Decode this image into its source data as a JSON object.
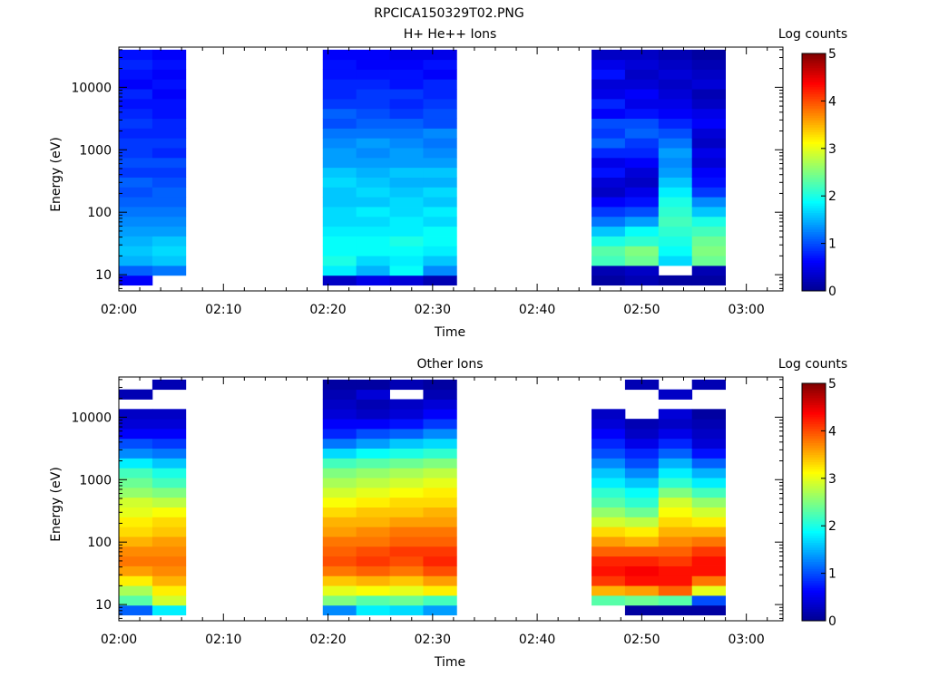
{
  "figure_title": "RPCICA150329T02.PNG",
  "colormap": [
    "#00008f",
    "#0000ff",
    "#0080ff",
    "#00ffff",
    "#80ff80",
    "#ffff00",
    "#ff8000",
    "#ff0000",
    "#800000"
  ],
  "chart_data": [
    {
      "type": "heatmap",
      "title": "H+ He++ Ions",
      "xlabel": "Time",
      "ylabel": "Energy (eV)",
      "y_scale": "log",
      "xlim_minutes": [
        0,
        63.5
      ],
      "ylim": [
        5.5,
        44000
      ],
      "x_ticks": [
        {
          "label": "02:00",
          "minutes": 0
        },
        {
          "label": "02:10",
          "minutes": 10
        },
        {
          "label": "02:20",
          "minutes": 20
        },
        {
          "label": "02:30",
          "minutes": 30
        },
        {
          "label": "02:40",
          "minutes": 40
        },
        {
          "label": "02:50",
          "minutes": 50
        },
        {
          "label": "03:00",
          "minutes": 60
        }
      ],
      "y_ticks": [
        {
          "label": "10",
          "value": 10
        },
        {
          "label": "100",
          "value": 100
        },
        {
          "label": "1000",
          "value": 1000
        },
        {
          "label": "10000",
          "value": 10000
        }
      ],
      "colorbar": {
        "label": "Log counts",
        "range": [
          0,
          5
        ],
        "ticks": [
          "0",
          "1",
          "2",
          "3",
          "4",
          "5"
        ]
      },
      "energy_bins_low_to_high": 24,
      "time_blocks": [
        {
          "start": 0.0,
          "end": 3.2,
          "log_counts_low_to_high": [
            0.6,
            1.1,
            1.5,
            1.6,
            1.5,
            1.4,
            1.3,
            1.2,
            1.1,
            1.0,
            1.1,
            0.9,
            1.0,
            0.9,
            0.9,
            0.8,
            0.9,
            0.8,
            0.7,
            0.8,
            0.6,
            0.7,
            0.8,
            0.7
          ]
        },
        {
          "start": 3.2,
          "end": 6.4,
          "log_counts_low_to_high": [
            null,
            1.2,
            1.6,
            1.7,
            1.6,
            1.4,
            1.3,
            1.2,
            1.1,
            1.1,
            1.0,
            0.9,
            1.0,
            0.8,
            0.9,
            0.8,
            0.8,
            0.7,
            0.7,
            0.6,
            0.7,
            0.6,
            0.7,
            0.6
          ]
        },
        {
          "start": 19.5,
          "end": 22.7,
          "log_counts_low_to_high": [
            0.3,
            1.8,
            2.0,
            1.9,
            1.9,
            1.8,
            1.7,
            1.7,
            1.6,
            1.6,
            1.7,
            1.6,
            1.4,
            1.4,
            1.3,
            1.2,
            1.0,
            1.1,
            0.9,
            0.8,
            0.8,
            0.7,
            0.7,
            0.6
          ]
        },
        {
          "start": 22.7,
          "end": 25.9,
          "log_counts_low_to_high": [
            0.5,
            1.5,
            1.7,
            1.9,
            1.9,
            1.8,
            1.7,
            1.8,
            1.6,
            1.7,
            1.6,
            1.5,
            1.4,
            1.3,
            1.4,
            1.2,
            1.1,
            1.0,
            0.9,
            0.9,
            0.8,
            0.7,
            0.6,
            0.6
          ]
        },
        {
          "start": 25.9,
          "end": 29.1,
          "log_counts_low_to_high": [
            0.4,
            1.9,
            1.8,
            1.9,
            2.0,
            1.8,
            1.8,
            1.7,
            1.7,
            1.6,
            1.5,
            1.6,
            1.4,
            1.4,
            1.3,
            1.2,
            1.1,
            0.9,
            0.8,
            0.9,
            0.7,
            0.7,
            0.6,
            0.5
          ]
        },
        {
          "start": 29.1,
          "end": 32.3,
          "log_counts_low_to_high": [
            0.2,
            1.3,
            1.6,
            1.8,
            1.9,
            1.9,
            1.7,
            1.8,
            1.6,
            1.7,
            1.5,
            1.6,
            1.4,
            1.3,
            1.2,
            1.3,
            1.0,
            1.0,
            0.9,
            0.8,
            0.8,
            0.6,
            0.7,
            0.5
          ]
        },
        {
          "start": 45.2,
          "end": 48.4,
          "log_counts_low_to_high": [
            0.1,
            0.2,
            2.2,
            2.3,
            2.0,
            1.6,
            1.2,
            0.9,
            0.6,
            0.3,
            0.4,
            0.7,
            0.5,
            0.8,
            1.1,
            0.9,
            1.0,
            0.6,
            0.8,
            0.5,
            0.4,
            0.7,
            0.5,
            0.3
          ]
        },
        {
          "start": 48.4,
          "end": 51.6,
          "log_counts_low_to_high": [
            0.2,
            0.3,
            2.4,
            2.5,
            2.1,
            1.9,
            1.4,
            1.0,
            0.7,
            0.5,
            0.3,
            0.4,
            0.6,
            0.8,
            0.9,
            1.1,
            1.0,
            0.7,
            0.5,
            0.6,
            0.4,
            0.3,
            0.4,
            0.3
          ]
        },
        {
          "start": 51.6,
          "end": 54.8,
          "log_counts_low_to_high": [
            0.1,
            null,
            1.7,
            1.9,
            2.0,
            2.1,
            2.2,
            2.1,
            2.0,
            1.8,
            1.6,
            1.4,
            1.3,
            1.4,
            1.2,
            1.0,
            0.8,
            0.6,
            0.5,
            0.4,
            0.3,
            0.4,
            0.3,
            0.2
          ]
        },
        {
          "start": 54.8,
          "end": 58.0,
          "log_counts_low_to_high": [
            0.1,
            0.2,
            2.4,
            2.5,
            2.4,
            2.2,
            2.0,
            1.6,
            1.3,
            0.9,
            0.7,
            0.6,
            0.4,
            0.5,
            0.3,
            0.4,
            0.6,
            0.5,
            0.3,
            0.2,
            0.4,
            0.3,
            0.2,
            0.1
          ]
        }
      ]
    },
    {
      "type": "heatmap",
      "title": "Other Ions",
      "xlabel": "Time",
      "ylabel": "Energy (eV)",
      "y_scale": "log",
      "xlim_minutes": [
        0,
        63.5
      ],
      "ylim": [
        5.5,
        44000
      ],
      "x_ticks": [
        {
          "label": "02:00",
          "minutes": 0
        },
        {
          "label": "02:10",
          "minutes": 10
        },
        {
          "label": "02:20",
          "minutes": 20
        },
        {
          "label": "02:30",
          "minutes": 30
        },
        {
          "label": "02:40",
          "minutes": 40
        },
        {
          "label": "02:50",
          "minutes": 50
        },
        {
          "label": "03:00",
          "minutes": 60
        }
      ],
      "y_ticks": [
        {
          "label": "10",
          "value": 10
        },
        {
          "label": "100",
          "value": 100
        },
        {
          "label": "1000",
          "value": 1000
        },
        {
          "label": "10000",
          "value": 10000
        }
      ],
      "colorbar": {
        "label": "Log counts",
        "range": [
          0,
          5
        ],
        "ticks": [
          "0",
          "1",
          "2",
          "3",
          "4",
          "5"
        ]
      },
      "energy_bins_low_to_high": 24,
      "time_blocks": [
        {
          "start": 0.0,
          "end": 3.2,
          "log_counts_low_to_high": [
            1.1,
            2.3,
            2.7,
            3.2,
            3.6,
            3.8,
            3.7,
            3.5,
            3.3,
            3.2,
            3.0,
            2.9,
            2.6,
            2.4,
            2.2,
            1.8,
            1.3,
            1.0,
            0.6,
            0.4,
            0.3,
            null,
            0.2,
            null
          ]
        },
        {
          "start": 3.2,
          "end": 6.4,
          "log_counts_low_to_high": [
            1.8,
            2.9,
            3.2,
            3.5,
            3.7,
            3.8,
            3.7,
            3.6,
            3.4,
            3.3,
            3.1,
            2.8,
            2.5,
            2.2,
            2.0,
            1.6,
            1.2,
            0.9,
            0.6,
            0.4,
            0.3,
            null,
            null,
            0.2
          ]
        },
        {
          "start": 19.5,
          "end": 22.7,
          "log_counts_low_to_high": [
            1.3,
            2.5,
            3.0,
            3.4,
            3.8,
            4.0,
            3.9,
            3.8,
            3.6,
            3.5,
            3.3,
            3.1,
            2.9,
            2.7,
            2.5,
            2.2,
            1.7,
            1.2,
            0.8,
            0.6,
            0.4,
            0.3,
            0.2,
            0.1
          ]
        },
        {
          "start": 22.7,
          "end": 25.9,
          "log_counts_low_to_high": [
            1.8,
            2.3,
            3.1,
            3.5,
            3.9,
            4.1,
            4.0,
            3.8,
            3.7,
            3.5,
            3.4,
            3.2,
            3.0,
            2.8,
            2.6,
            2.3,
            1.9,
            1.4,
            1.0,
            0.6,
            0.3,
            0.2,
            0.4,
            0.1
          ]
        },
        {
          "start": 25.9,
          "end": 29.1,
          "log_counts_low_to_high": [
            1.7,
            2.4,
            3.0,
            3.4,
            3.8,
            4.0,
            4.1,
            3.9,
            3.8,
            3.6,
            3.4,
            3.3,
            3.1,
            2.9,
            2.7,
            2.4,
            2.0,
            1.6,
            1.1,
            0.7,
            0.4,
            0.3,
            null,
            0.2
          ]
        },
        {
          "start": 29.1,
          "end": 32.3,
          "log_counts_low_to_high": [
            1.4,
            2.2,
            3.2,
            3.6,
            4.0,
            4.2,
            4.1,
            3.9,
            3.8,
            3.6,
            3.5,
            3.3,
            3.2,
            3.0,
            2.8,
            2.5,
            2.1,
            1.7,
            1.3,
            0.9,
            0.6,
            0.4,
            0.2,
            0.1
          ]
        },
        {
          "start": 45.2,
          "end": 48.4,
          "log_counts_low_to_high": [
            null,
            2.3,
            3.5,
            4.1,
            4.3,
            4.2,
            3.9,
            3.6,
            3.3,
            2.9,
            2.6,
            2.3,
            2.1,
            1.8,
            1.6,
            1.3,
            1.0,
            0.8,
            0.6,
            0.4,
            0.3,
            null,
            null,
            null
          ]
        },
        {
          "start": 48.4,
          "end": 51.6,
          "log_counts_low_to_high": [
            0.1,
            2.4,
            3.6,
            4.3,
            4.4,
            4.2,
            3.9,
            3.5,
            3.2,
            2.8,
            2.4,
            2.1,
            1.9,
            1.6,
            1.3,
            1.0,
            0.8,
            0.5,
            0.3,
            0.2,
            null,
            null,
            null,
            0.2
          ]
        },
        {
          "start": 51.6,
          "end": 54.8,
          "log_counts_low_to_high": [
            0.1,
            2.3,
            3.9,
            4.3,
            4.3,
            4.1,
            3.9,
            3.7,
            3.5,
            3.3,
            3.1,
            2.9,
            2.5,
            2.1,
            1.8,
            1.5,
            1.1,
            0.8,
            0.5,
            0.3,
            0.4,
            null,
            0.3,
            null
          ]
        },
        {
          "start": 54.8,
          "end": 58.0,
          "log_counts_low_to_high": [
            0.1,
            1.0,
            3.0,
            3.8,
            4.3,
            4.3,
            4.1,
            3.8,
            3.5,
            3.2,
            2.9,
            2.6,
            2.2,
            1.8,
            1.5,
            1.1,
            0.7,
            0.4,
            0.3,
            0.2,
            0.1,
            null,
            null,
            0.2
          ]
        }
      ]
    }
  ]
}
